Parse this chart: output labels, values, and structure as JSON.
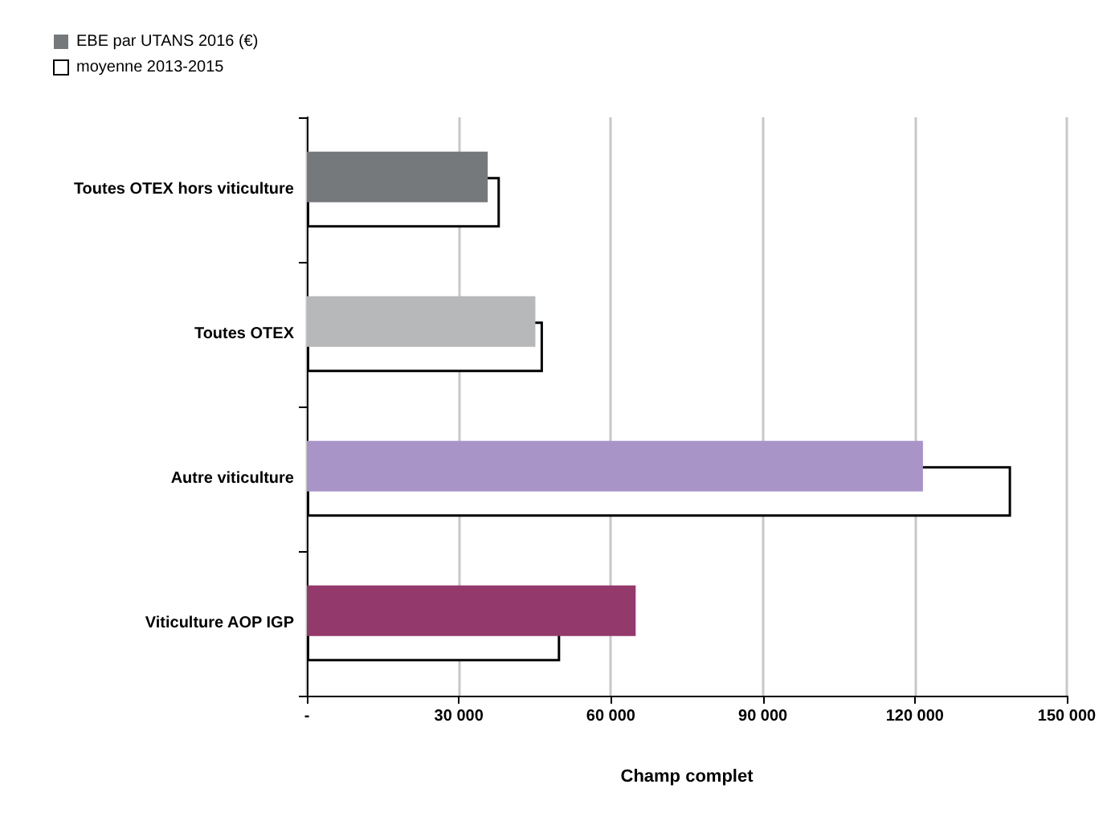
{
  "chart_data": {
    "type": "bar",
    "orientation": "horizontal",
    "xlabel": "Champ complet",
    "categories": [
      "Toutes OTEX hors viticulture",
      "Toutes OTEX",
      "Autre viticulture",
      "Viticulture AOP IGP"
    ],
    "series": [
      {
        "name": "EBE par UTANS 2016 (€)",
        "color": "#76797c",
        "colors": [
          "#76797c",
          "#b7b8ba",
          "#a994c8",
          "#94396b"
        ],
        "values": [
          35700,
          45100,
          121600,
          64900
        ]
      },
      {
        "name": "moyenne 2013-2015",
        "color": "#ffffff",
        "values": [
          38100,
          46600,
          139000,
          50000
        ]
      }
    ],
    "xlim": [
      0,
      150000
    ],
    "xticks": [
      {
        "value": 0,
        "label": "-"
      },
      {
        "value": 30000,
        "label": "30 000"
      },
      {
        "value": 60000,
        "label": "60 000"
      },
      {
        "value": 90000,
        "label": "90 000"
      },
      {
        "value": 120000,
        "label": "120 000"
      },
      {
        "value": 150000,
        "label": "150 000"
      }
    ],
    "grid": "x",
    "legend": "top left"
  }
}
